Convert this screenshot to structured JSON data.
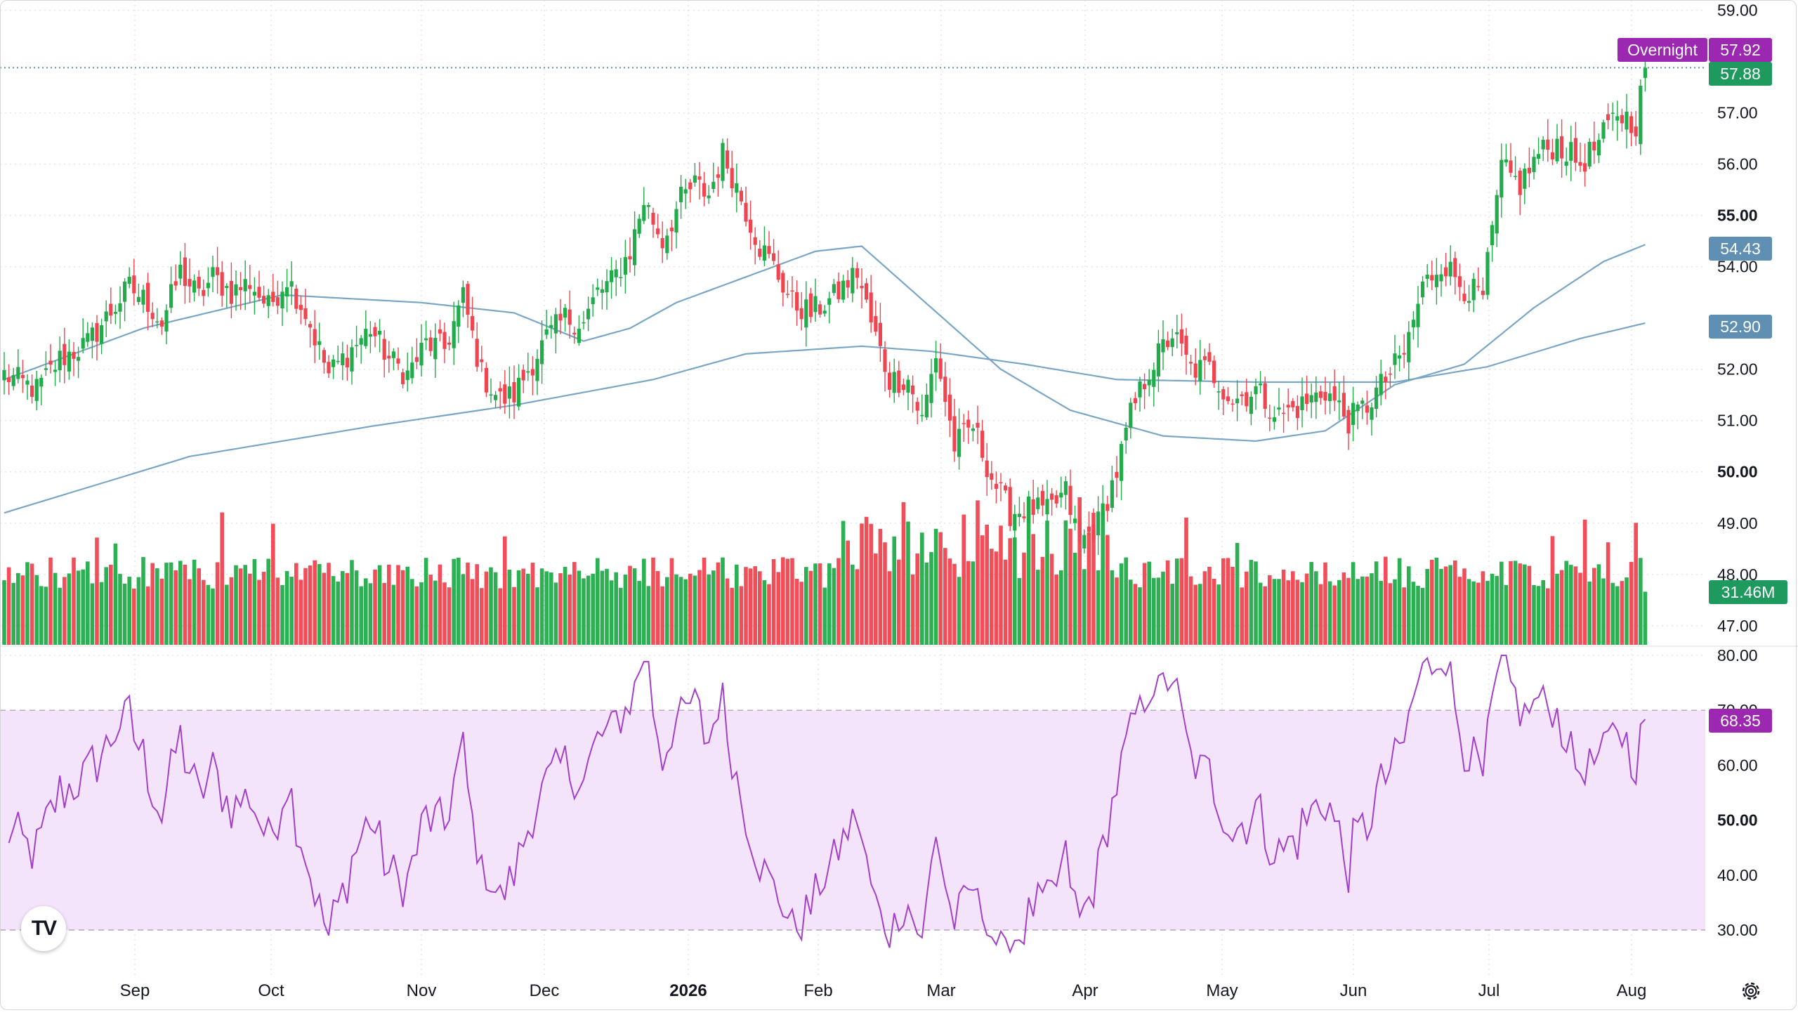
{
  "colors": {
    "up": "#22ab4a",
    "down": "#ef4550",
    "ma_line": "#7aa6c6",
    "rsi_line": "#a340c9",
    "rsi_band": "#f3e4fb",
    "grid": "#e3e6ea",
    "overnight": "#9c27b0",
    "price_tag": "#1e9a5f",
    "ma_tag": "#5f8fb3"
  },
  "price_scale": {
    "ticks": [
      "59.00",
      "57.00",
      "56.00",
      "55.00",
      "54.00",
      "52.00",
      "51.00",
      "50.00",
      "49.00",
      "48.00",
      "47.00"
    ],
    "major_ticks": [
      "55.00",
      "50.00"
    ],
    "tags": {
      "overnight_label": "Overnight",
      "overnight_value": "57.92",
      "last_price": "57.88",
      "ma_fast": "54.43",
      "ma_slow": "52.90",
      "volume": "31.46M"
    }
  },
  "rsi_scale": {
    "ticks": [
      "80.00",
      "70.00",
      "60.00",
      "50.00",
      "40.00",
      "30.00"
    ],
    "major_ticks": [
      "50.00"
    ],
    "value": "68.35"
  },
  "time_axis": [
    "Sep",
    "Oct",
    "Nov",
    "Dec",
    "2026",
    "Feb",
    "Mar",
    "Apr",
    "May",
    "Jun",
    "Jul",
    "Aug"
  ],
  "time_axis_bold": [
    "2026"
  ],
  "logo_text": "TV",
  "chart_data": [
    {
      "type": "candlestick",
      "period": "daily",
      "ylim": [
        46.6,
        59.2
      ],
      "keyframes": [
        [
          0,
          51.9
        ],
        [
          7,
          51.6
        ],
        [
          12,
          52.2
        ],
        [
          18,
          52.5
        ],
        [
          22,
          53.0
        ],
        [
          27,
          53.6
        ],
        [
          31,
          53.3
        ],
        [
          34,
          52.9
        ],
        [
          38,
          53.9
        ],
        [
          42,
          53.4
        ],
        [
          45,
          53.8
        ],
        [
          49,
          53.5
        ],
        [
          53,
          53.7
        ],
        [
          57,
          53.2
        ],
        [
          61,
          53.8
        ],
        [
          65,
          53.1
        ],
        [
          70,
          51.9
        ],
        [
          75,
          52.4
        ],
        [
          79,
          52.8
        ],
        [
          83,
          52.2
        ],
        [
          87,
          51.9
        ],
        [
          91,
          52.5
        ],
        [
          95,
          52.4
        ],
        [
          99,
          53.4
        ],
        [
          103,
          51.9
        ],
        [
          107,
          51.4
        ],
        [
          110,
          51.5
        ],
        [
          113,
          52.0
        ],
        [
          117,
          52.6
        ],
        [
          121,
          53.0
        ],
        [
          125,
          52.9
        ],
        [
          128,
          53.5
        ],
        [
          131,
          53.7
        ],
        [
          135,
          54.3
        ],
        [
          138,
          55.3
        ],
        [
          142,
          54.5
        ],
        [
          146,
          55.3
        ],
        [
          149,
          55.6
        ],
        [
          152,
          55.4
        ],
        [
          155,
          56.2
        ],
        [
          157,
          55.8
        ],
        [
          160,
          55.1
        ],
        [
          163,
          54.4
        ],
        [
          166,
          54.0
        ],
        [
          170,
          53.3
        ],
        [
          174,
          53.1
        ],
        [
          179,
          53.4
        ],
        [
          184,
          53.9
        ],
        [
          187,
          52.9
        ],
        [
          191,
          51.8
        ],
        [
          195,
          51.8
        ],
        [
          198,
          51.0
        ],
        [
          201,
          52.3
        ],
        [
          205,
          50.5
        ],
        [
          209,
          50.9
        ],
        [
          213,
          49.9
        ],
        [
          217,
          49.2
        ],
        [
          221,
          49.3
        ],
        [
          225,
          49.2
        ],
        [
          229,
          49.6
        ],
        [
          232,
          48.6
        ],
        [
          236,
          49.0
        ],
        [
          240,
          50.0
        ],
        [
          243,
          51.1
        ],
        [
          247,
          52.0
        ],
        [
          252,
          52.7
        ],
        [
          256,
          52.0
        ],
        [
          260,
          52.0
        ],
        [
          265,
          51.4
        ],
        [
          270,
          51.6
        ],
        [
          275,
          51.1
        ],
        [
          280,
          51.3
        ],
        [
          285,
          51.6
        ],
        [
          290,
          51.0
        ],
        [
          294,
          51.3
        ],
        [
          298,
          51.8
        ],
        [
          302,
          52.3
        ],
        [
          306,
          53.6
        ],
        [
          310,
          54.1
        ],
        [
          315,
          53.6
        ],
        [
          319,
          53.4
        ],
        [
          323,
          55.9
        ],
        [
          327,
          55.6
        ],
        [
          331,
          56.2
        ],
        [
          335,
          56.4
        ],
        [
          340,
          56.0
        ],
        [
          344,
          56.4
        ],
        [
          348,
          57.0
        ],
        [
          352,
          56.8
        ],
        [
          354,
          57.88
        ]
      ],
      "last_close": 57.88,
      "overnight": 57.92
    },
    {
      "type": "line",
      "name": "",
      "values_at_keyframes": [
        [
          0,
          51.8
        ],
        [
          30,
          52.8
        ],
        [
          60,
          53.45
        ],
        [
          90,
          53.3
        ],
        [
          110,
          53.1
        ],
        [
          125,
          52.55
        ],
        [
          135,
          52.8
        ],
        [
          145,
          53.3
        ],
        [
          160,
          53.8
        ],
        [
          175,
          54.3
        ],
        [
          185,
          54.4
        ],
        [
          200,
          53.2
        ],
        [
          215,
          52.0
        ],
        [
          230,
          51.2
        ],
        [
          250,
          50.7
        ],
        [
          270,
          50.6
        ],
        [
          285,
          50.8
        ],
        [
          300,
          51.7
        ],
        [
          315,
          52.1
        ],
        [
          330,
          53.2
        ],
        [
          345,
          54.1
        ],
        [
          354,
          54.43
        ]
      ],
      "last": 54.43
    },
    {
      "type": "line",
      "name": "",
      "values_at_keyframes": [
        [
          0,
          49.2
        ],
        [
          40,
          50.3
        ],
        [
          80,
          50.9
        ],
        [
          110,
          51.3
        ],
        [
          140,
          51.8
        ],
        [
          160,
          52.3
        ],
        [
          185,
          52.45
        ],
        [
          200,
          52.35
        ],
        [
          220,
          52.1
        ],
        [
          240,
          51.8
        ],
        [
          270,
          51.75
        ],
        [
          300,
          51.75
        ],
        [
          320,
          52.05
        ],
        [
          340,
          52.6
        ],
        [
          354,
          52.9
        ]
      ],
      "last": 52.9
    },
    {
      "type": "bar",
      "name": "Volume",
      "last": "31.46M"
    },
    {
      "type": "line",
      "name": "RSI",
      "ylim": [
        25,
        82
      ],
      "band": [
        30,
        70
      ],
      "last": 68.35
    }
  ]
}
